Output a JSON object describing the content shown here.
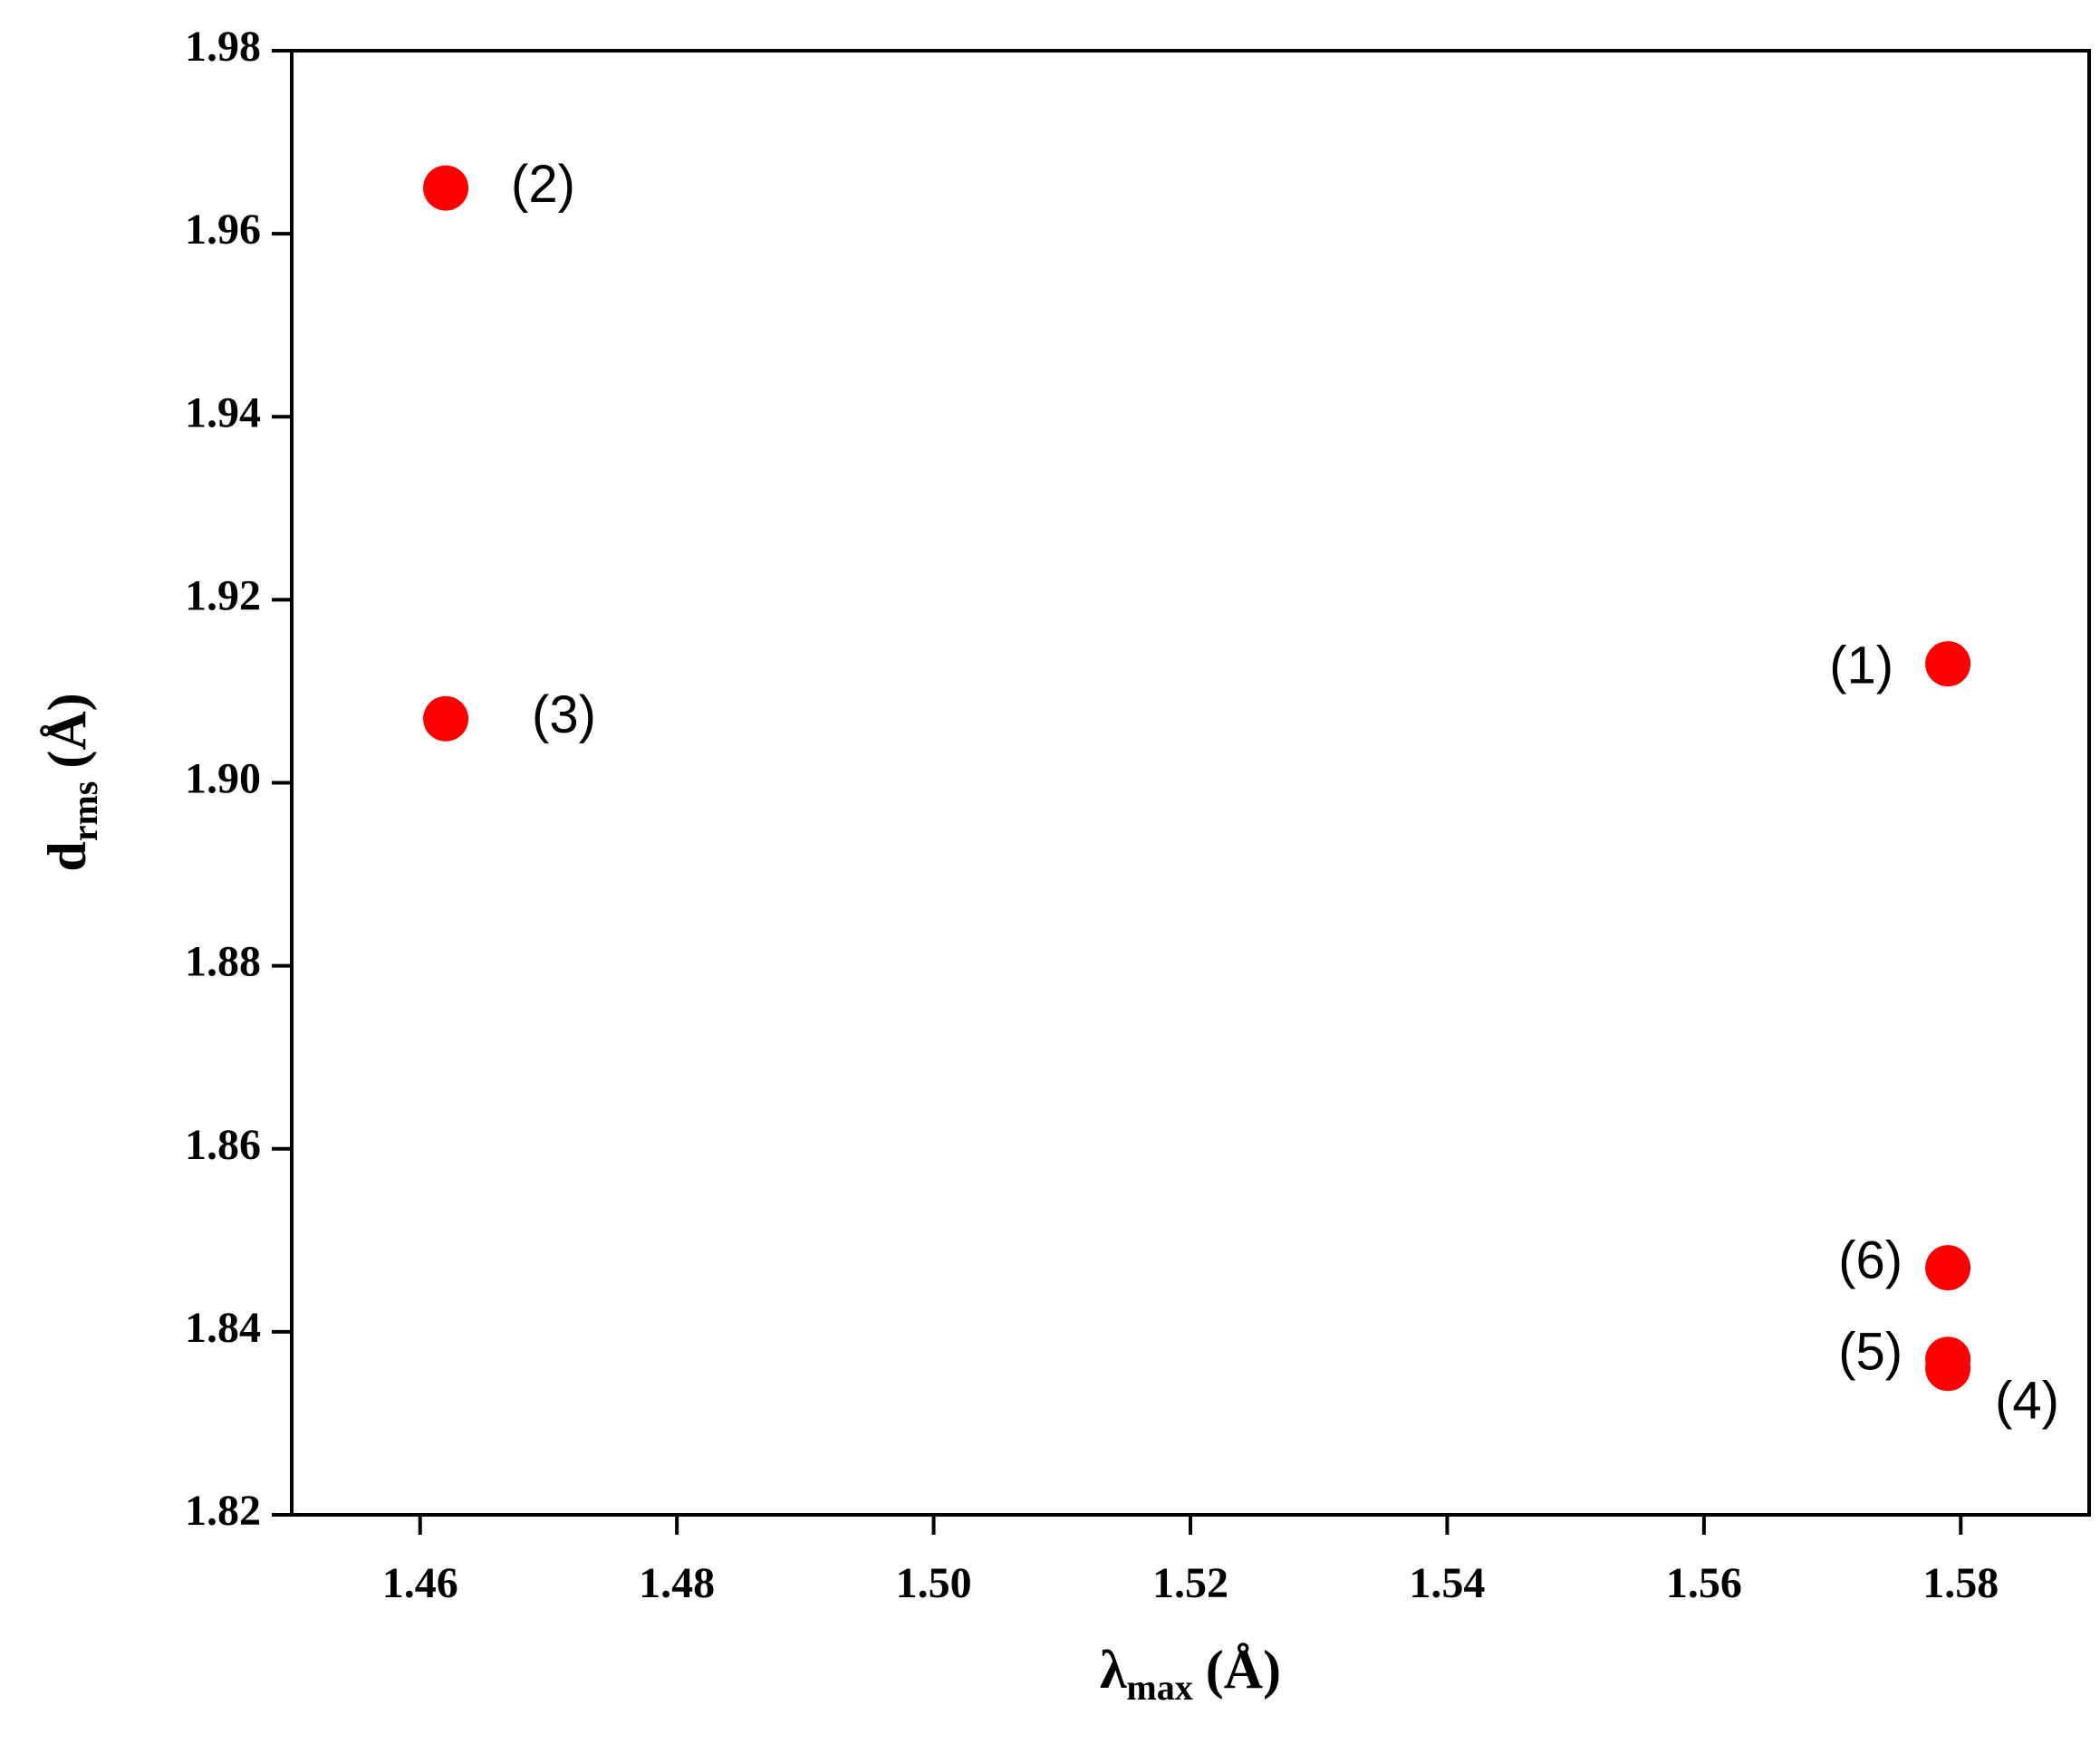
{
  "chart_data": {
    "type": "scatter",
    "x_label": {
      "symbol": "λ",
      "subscript": "max",
      "unit": "(Å)"
    },
    "y_label": {
      "symbol": "d",
      "subscript": "rms",
      "unit": "(Å)"
    },
    "series": [
      {
        "color": "#ff0000",
        "x": [
          1.579,
          1.462,
          1.462,
          1.579,
          1.579,
          1.579
        ],
        "values": [
          1.913,
          1.965,
          1.907,
          1.836,
          1.837,
          1.847
        ],
        "point_labels": [
          "(1)",
          "(2)",
          "(3)",
          "(4)",
          "(5)",
          "(6)"
        ]
      }
    ],
    "xlim": [
      1.45,
      1.59
    ],
    "xticks": [
      1.46,
      1.48,
      {
        "value": 1.5,
        "label": "1.50"
      },
      1.52,
      1.54,
      1.56,
      1.58
    ],
    "ylim": [
      1.82,
      1.98
    ],
    "yticks": [
      1.82,
      1.84,
      1.86,
      1.88,
      {
        "value": 1.9,
        "label": "1.90"
      },
      1.92,
      1.94,
      1.96,
      1.98
    ]
  }
}
